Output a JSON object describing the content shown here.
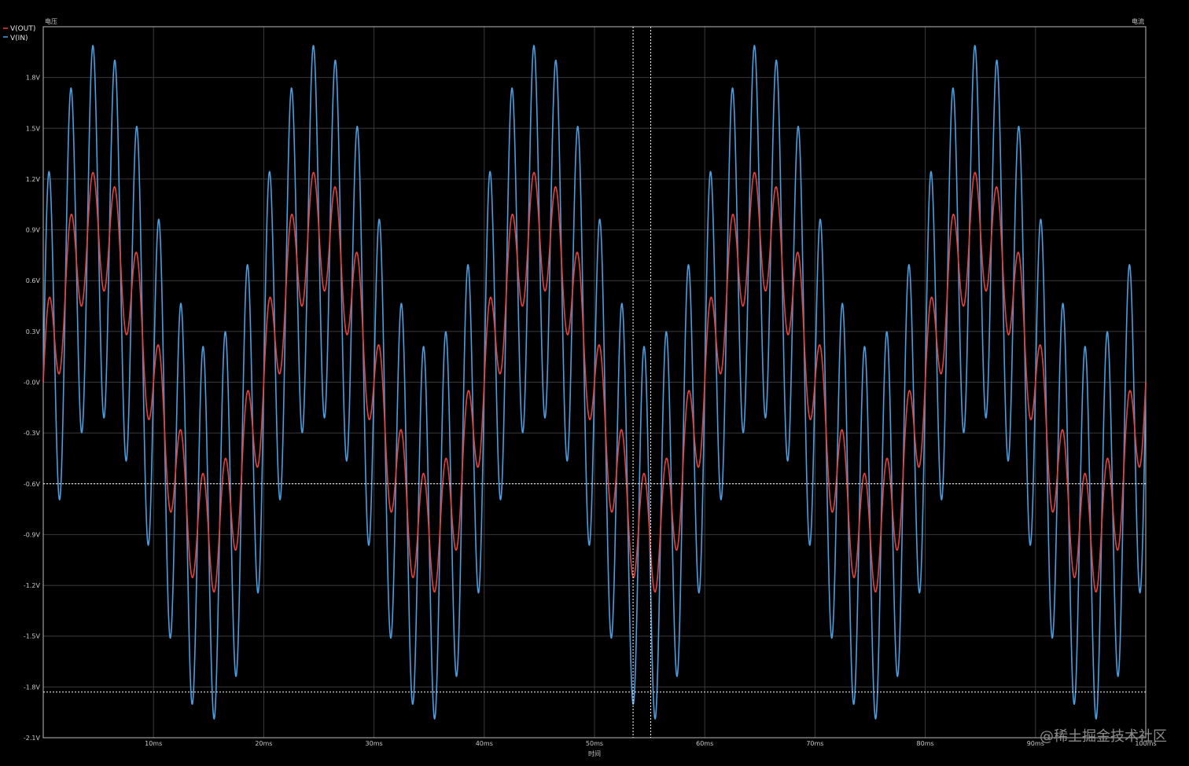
{
  "chart_data": {
    "type": "line",
    "left_axis_label": "电压",
    "right_axis_label": "电流",
    "xlabel": "时间",
    "xlim_ms": [
      0,
      100
    ],
    "ylim": [
      -2.1,
      2.1
    ],
    "x_tick_values": [
      10,
      20,
      30,
      40,
      50,
      60,
      70,
      80,
      90,
      100
    ],
    "x_tick_labels": [
      "10ms",
      "20ms",
      "30ms",
      "40ms",
      "50ms",
      "60ms",
      "70ms",
      "80ms",
      "90ms",
      "100ms"
    ],
    "y_tick_values": [
      1.8,
      1.5,
      1.2,
      0.9,
      0.6,
      0.3,
      0.0,
      -0.3,
      -0.6,
      -0.9,
      -1.2,
      -1.5,
      -1.8,
      -2.1
    ],
    "y_tick_labels": [
      "1.8V",
      "1.5V",
      "1.2V",
      "0.9V",
      "0.6V",
      "0.3V",
      "-0.0V",
      "-0.3V",
      "-0.6V",
      "-0.9V",
      "-1.2V",
      "-1.5V",
      "-1.8V",
      "-2.1V"
    ],
    "grid": true,
    "legend_position": "top-left",
    "series": [
      {
        "name": "V(OUT)",
        "color": "#e8413c",
        "components": [
          {
            "amplitude_V": 0.9,
            "frequency_Hz": 50
          },
          {
            "amplitude_V": 0.35,
            "frequency_Hz": 500
          }
        ]
      },
      {
        "name": "V(IN)",
        "color": "#4a9ee0",
        "components": [
          {
            "amplitude_V": 0.9,
            "frequency_Hz": 50
          },
          {
            "amplitude_V": 1.1,
            "frequency_Hz": 500
          }
        ]
      }
    ],
    "cursors": {
      "vertical_ms": [
        53.5,
        55.1
      ],
      "horizontal_V": [
        -0.6,
        -1.83
      ]
    }
  },
  "watermark": "@稀土掘金技术社区"
}
